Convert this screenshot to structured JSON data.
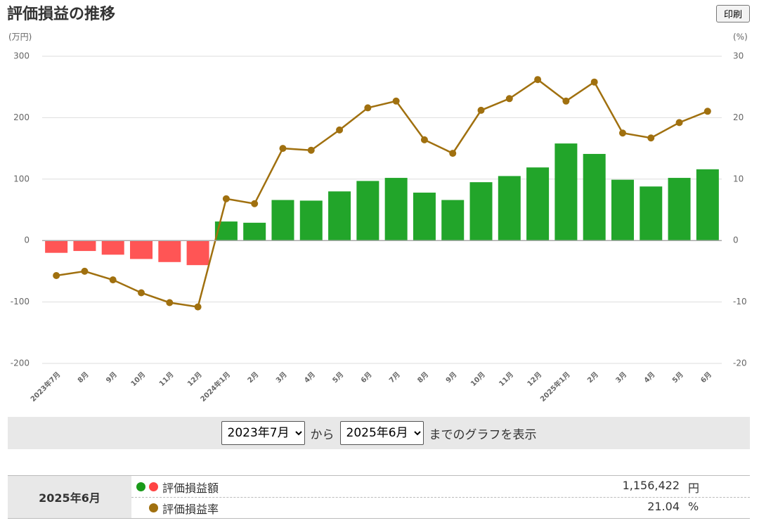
{
  "title": "評価損益の推移",
  "print_button": "印刷",
  "chart_data": {
    "type": "bar",
    "y_label": "(万円)",
    "y2_label": "(%)",
    "categories": [
      "2023年7月",
      "8月",
      "9月",
      "10月",
      "11月",
      "12月",
      "2024年1月",
      "2月",
      "3月",
      "4月",
      "5月",
      "6月",
      "7月",
      "8月",
      "9月",
      "10月",
      "11月",
      "12月",
      "2025年1月",
      "2月",
      "3月",
      "4月",
      "5月",
      "6月"
    ],
    "series": [
      {
        "name": "評価損益額",
        "type": "bar",
        "color": "#22a52a",
        "negative_color": "#ff5555",
        "values": [
          -20,
          -17,
          -23,
          -30,
          -35,
          -40,
          31,
          29,
          66,
          65,
          80,
          97,
          102,
          78,
          66,
          95,
          105,
          119,
          158,
          141,
          99,
          88,
          102,
          116
        ]
      },
      {
        "name": "評価損益率",
        "type": "line",
        "axis": "y2",
        "color": "#a0700f",
        "values": [
          -5.7,
          -5.0,
          -6.4,
          -8.5,
          -10.1,
          -10.8,
          6.8,
          6.0,
          15.0,
          14.7,
          18.0,
          21.6,
          22.7,
          16.4,
          14.2,
          21.2,
          23.1,
          26.2,
          22.7,
          25.8,
          17.5,
          16.7,
          19.2,
          21.04
        ]
      }
    ],
    "ylim": [
      -200,
      300
    ],
    "yticks": [
      -200,
      -100,
      0,
      100,
      200,
      300
    ],
    "y2lim": [
      -20,
      30
    ],
    "y2ticks": [
      -20,
      -10,
      0,
      10,
      20,
      30
    ],
    "grid": true
  },
  "controls": {
    "from": "2023年7月",
    "from_suffix": "から",
    "to": "2025年6月",
    "to_suffix": "までのグラフを表示"
  },
  "summary": {
    "period": "2025年6月",
    "rows": [
      {
        "label": "評価損益額",
        "value": "1,156,422",
        "unit": "円"
      },
      {
        "label": "評価損益率",
        "value": "21.04",
        "unit": "%"
      }
    ]
  }
}
